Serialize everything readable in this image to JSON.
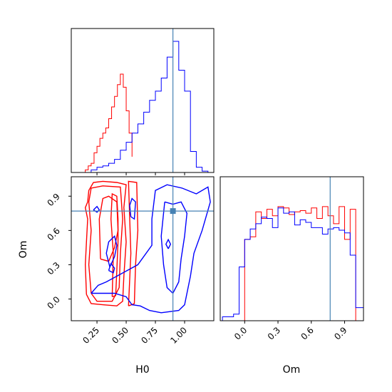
{
  "chart_data": {
    "type": "corner",
    "parameters": [
      "H0",
      "Om"
    ],
    "truths": {
      "H0": 0.9,
      "Om": 0.77
    },
    "colors": {
      "red_series": "#ff0000",
      "blue_series": "#0000ff",
      "truth": "#4682b4"
    },
    "panels": [
      {
        "id": "hist-h0",
        "type": "histogram",
        "xlim": [
          0.03,
          1.25
        ],
        "ylim": [
          0,
          1.0
        ],
        "tick_values": [
          0.25,
          0.5,
          0.75,
          1.0
        ],
        "tick_labels_shown": false,
        "series": [
          {
            "color": "#ff0000",
            "bin_edges": [
              0.15,
              0.175,
              0.2,
              0.225,
              0.25,
              0.275,
              0.3,
              0.325,
              0.35,
              0.375,
              0.4,
              0.425,
              0.45,
              0.475,
              0.5,
              0.525,
              0.55
            ],
            "counts": [
              0.02,
              0.05,
              0.07,
              0.15,
              0.2,
              0.26,
              0.3,
              0.34,
              0.41,
              0.5,
              0.58,
              0.67,
              0.75,
              0.65,
              0.47,
              0.3,
              0.12
            ]
          },
          {
            "color": "#0000ff",
            "bin_edges": [
              0.2,
              0.25,
              0.3,
              0.35,
              0.4,
              0.45,
              0.5,
              0.55,
              0.6,
              0.65,
              0.7,
              0.75,
              0.8,
              0.85,
              0.9,
              0.95,
              1.0,
              1.05,
              1.1,
              1.15,
              1.2
            ],
            "counts": [
              0.02,
              0.04,
              0.05,
              0.07,
              0.1,
              0.17,
              0.23,
              0.3,
              0.37,
              0.46,
              0.55,
              0.62,
              0.72,
              0.88,
              1.0,
              0.78,
              0.62,
              0.16,
              0.04,
              0.01
            ]
          }
        ],
        "truth_x": 0.9
      },
      {
        "id": "hist-om",
        "type": "histogram",
        "xlim": [
          -0.22,
          1.07
        ],
        "ylim": [
          0,
          1.0
        ],
        "xlabel": "Om",
        "tick_values": [
          0.0,
          0.3,
          0.6,
          0.9
        ],
        "tick_labels": [
          "0.0",
          "0.3",
          "0.6",
          "0.9"
        ],
        "series": [
          {
            "color": "#ff0000",
            "bin_edges": [
              0.0,
              0.05,
              0.1,
              0.15,
              0.2,
              0.25,
              0.3,
              0.35,
              0.4,
              0.45,
              0.5,
              0.55,
              0.6,
              0.65,
              0.7,
              0.75,
              0.8,
              0.85,
              0.9,
              0.95,
              1.0
            ],
            "counts": [
              0.62,
              0.64,
              0.83,
              0.78,
              0.85,
              0.8,
              0.87,
              0.86,
              0.81,
              0.83,
              0.84,
              0.82,
              0.86,
              0.78,
              0.87,
              0.8,
              0.74,
              0.87,
              0.62,
              0.85
            ]
          },
          {
            "color": "#0000ff",
            "bin_edges": [
              -0.2,
              -0.1,
              -0.05,
              0.0,
              0.05,
              0.1,
              0.15,
              0.2,
              0.25,
              0.3,
              0.35,
              0.4,
              0.45,
              0.5,
              0.55,
              0.6,
              0.65,
              0.7,
              0.75,
              0.8,
              0.85,
              0.9,
              0.95,
              1.0,
              1.07
            ],
            "counts": [
              0.03,
              0.05,
              0.41,
              0.62,
              0.7,
              0.74,
              0.79,
              0.78,
              0.71,
              0.86,
              0.82,
              0.83,
              0.73,
              0.77,
              0.75,
              0.71,
              0.71,
              0.66,
              0.7,
              0.71,
              0.69,
              0.67,
              0.5,
              0.1
            ]
          }
        ],
        "truth_x": 0.77
      },
      {
        "id": "scatter-h0-om",
        "type": "contour",
        "xlim": [
          0.03,
          1.25
        ],
        "ylim": [
          -0.19,
          1.07
        ],
        "xlabel": "H0",
        "ylabel": "Om",
        "x_tick_values": [
          0.25,
          0.5,
          0.75,
          1.0
        ],
        "x_tick_labels": [
          "0.25",
          "0.50",
          "0.75",
          "1.00"
        ],
        "y_tick_values": [
          0.0,
          0.3,
          0.6,
          0.9
        ],
        "y_tick_labels": [
          "0.0",
          "0.3",
          "0.6",
          "0.9"
        ],
        "truth_point": [
          0.9,
          0.77
        ],
        "contours": [
          {
            "color": "#ff0000",
            "points": [
              [
                0.16,
                0.04
              ],
              [
                0.2,
                -0.04
              ],
              [
                0.3,
                -0.05
              ],
              [
                0.42,
                -0.06
              ],
              [
                0.47,
                -0.02
              ],
              [
                0.48,
                0.2
              ],
              [
                0.5,
                0.5
              ],
              [
                0.48,
                0.8
              ],
              [
                0.5,
                1.0
              ],
              [
                0.42,
                1.02
              ],
              [
                0.3,
                1.03
              ],
              [
                0.22,
                1.02
              ],
              [
                0.18,
                0.95
              ],
              [
                0.17,
                0.85
              ],
              [
                0.15,
                0.8
              ],
              [
                0.17,
                0.7
              ],
              [
                0.16,
                0.5
              ],
              [
                0.15,
                0.3
              ],
              [
                0.16,
                0.04
              ]
            ]
          },
          {
            "color": "#ff0000",
            "points": [
              [
                0.2,
                0.05
              ],
              [
                0.25,
                -0.02
              ],
              [
                0.38,
                -0.02
              ],
              [
                0.44,
                0.1
              ],
              [
                0.45,
                0.4
              ],
              [
                0.47,
                0.7
              ],
              [
                0.45,
                0.98
              ],
              [
                0.3,
                0.99
              ],
              [
                0.2,
                0.97
              ],
              [
                0.18,
                0.85
              ],
              [
                0.2,
                0.6
              ],
              [
                0.18,
                0.3
              ],
              [
                0.2,
                0.05
              ]
            ]
          },
          {
            "color": "#ff0000",
            "points": [
              [
                0.38,
                0.02
              ],
              [
                0.41,
                0.03
              ],
              [
                0.42,
                0.25
              ],
              [
                0.43,
                0.5
              ],
              [
                0.43,
                0.7
              ],
              [
                0.42,
                0.9
              ],
              [
                0.38,
                0.92
              ],
              [
                0.37,
                0.7
              ],
              [
                0.39,
                0.4
              ],
              [
                0.38,
                0.02
              ]
            ]
          },
          {
            "color": "#ff0000",
            "points": [
              [
                0.28,
                0.35
              ],
              [
                0.35,
                0.33
              ],
              [
                0.4,
                0.45
              ],
              [
                0.43,
                0.6
              ],
              [
                0.42,
                0.85
              ],
              [
                0.35,
                0.9
              ],
              [
                0.3,
                0.88
              ],
              [
                0.27,
                0.7
              ],
              [
                0.28,
                0.35
              ]
            ]
          },
          {
            "color": "#ff0000",
            "points": [
              [
                0.52,
                -0.06
              ],
              [
                0.57,
                -0.04
              ],
              [
                0.58,
                0.3
              ],
              [
                0.6,
                0.6
              ],
              [
                0.59,
                1.02
              ],
              [
                0.52,
                1.03
              ],
              [
                0.53,
                0.7
              ],
              [
                0.54,
                0.4
              ],
              [
                0.52,
                -0.06
              ]
            ]
          },
          {
            "color": "#0000ff",
            "points": [
              [
                0.2,
                0.05
              ],
              [
                0.26,
                0.12
              ],
              [
                0.33,
                0.15
              ],
              [
                0.42,
                0.2
              ],
              [
                0.6,
                0.3
              ],
              [
                0.72,
                0.47
              ],
              [
                0.72,
                0.7
              ],
              [
                0.75,
                0.95
              ],
              [
                0.85,
                1.0
              ],
              [
                0.98,
                0.97
              ],
              [
                1.1,
                0.92
              ],
              [
                1.2,
                0.98
              ],
              [
                1.22,
                0.85
              ],
              [
                1.15,
                0.6
              ],
              [
                1.08,
                0.4
              ],
              [
                1.05,
                0.2
              ],
              [
                1.0,
                -0.05
              ],
              [
                0.95,
                -0.1
              ],
              [
                0.8,
                -0.12
              ],
              [
                0.7,
                -0.1
              ],
              [
                0.62,
                -0.06
              ],
              [
                0.55,
                -0.05
              ],
              [
                0.5,
                0.02
              ],
              [
                0.4,
                0.05
              ],
              [
                0.3,
                0.05
              ],
              [
                0.2,
                0.05
              ]
            ]
          },
          {
            "color": "#0000ff",
            "points": [
              [
                0.83,
                0.85
              ],
              [
                0.9,
                0.83
              ],
              [
                0.97,
                0.85
              ],
              [
                1.02,
                0.75
              ],
              [
                1.0,
                0.55
              ],
              [
                0.97,
                0.35
              ],
              [
                0.95,
                0.15
              ],
              [
                0.9,
                0.05
              ],
              [
                0.85,
                0.1
              ],
              [
                0.82,
                0.3
              ],
              [
                0.8,
                0.55
              ],
              [
                0.83,
                0.85
              ]
            ]
          },
          {
            "color": "#0000ff",
            "points": [
              [
                0.36,
                0.28
              ],
              [
                0.4,
                0.37
              ],
              [
                0.42,
                0.47
              ],
              [
                0.4,
                0.55
              ],
              [
                0.35,
                0.5
              ],
              [
                0.33,
                0.4
              ],
              [
                0.36,
                0.28
              ]
            ]
          },
          {
            "color": "#0000ff",
            "points": [
              [
                0.35,
                0.25
              ],
              [
                0.39,
                0.23
              ],
              [
                0.4,
                0.27
              ],
              [
                0.37,
                0.31
              ],
              [
                0.35,
                0.25
              ]
            ]
          },
          {
            "color": "#0000ff",
            "points": [
              [
                0.22,
                0.78
              ],
              [
                0.25,
                0.76
              ],
              [
                0.27,
                0.78
              ],
              [
                0.25,
                0.81
              ],
              [
                0.22,
                0.78
              ]
            ]
          },
          {
            "color": "#0000ff",
            "points": [
              [
                0.54,
                0.72
              ],
              [
                0.57,
                0.7
              ],
              [
                0.58,
                0.85
              ],
              [
                0.55,
                0.88
              ],
              [
                0.53,
                0.82
              ],
              [
                0.54,
                0.72
              ]
            ]
          },
          {
            "color": "#0000ff",
            "points": [
              [
                0.86,
                0.44
              ],
              [
                0.88,
                0.48
              ],
              [
                0.86,
                0.52
              ],
              [
                0.84,
                0.48
              ],
              [
                0.86,
                0.44
              ]
            ]
          }
        ]
      }
    ]
  }
}
